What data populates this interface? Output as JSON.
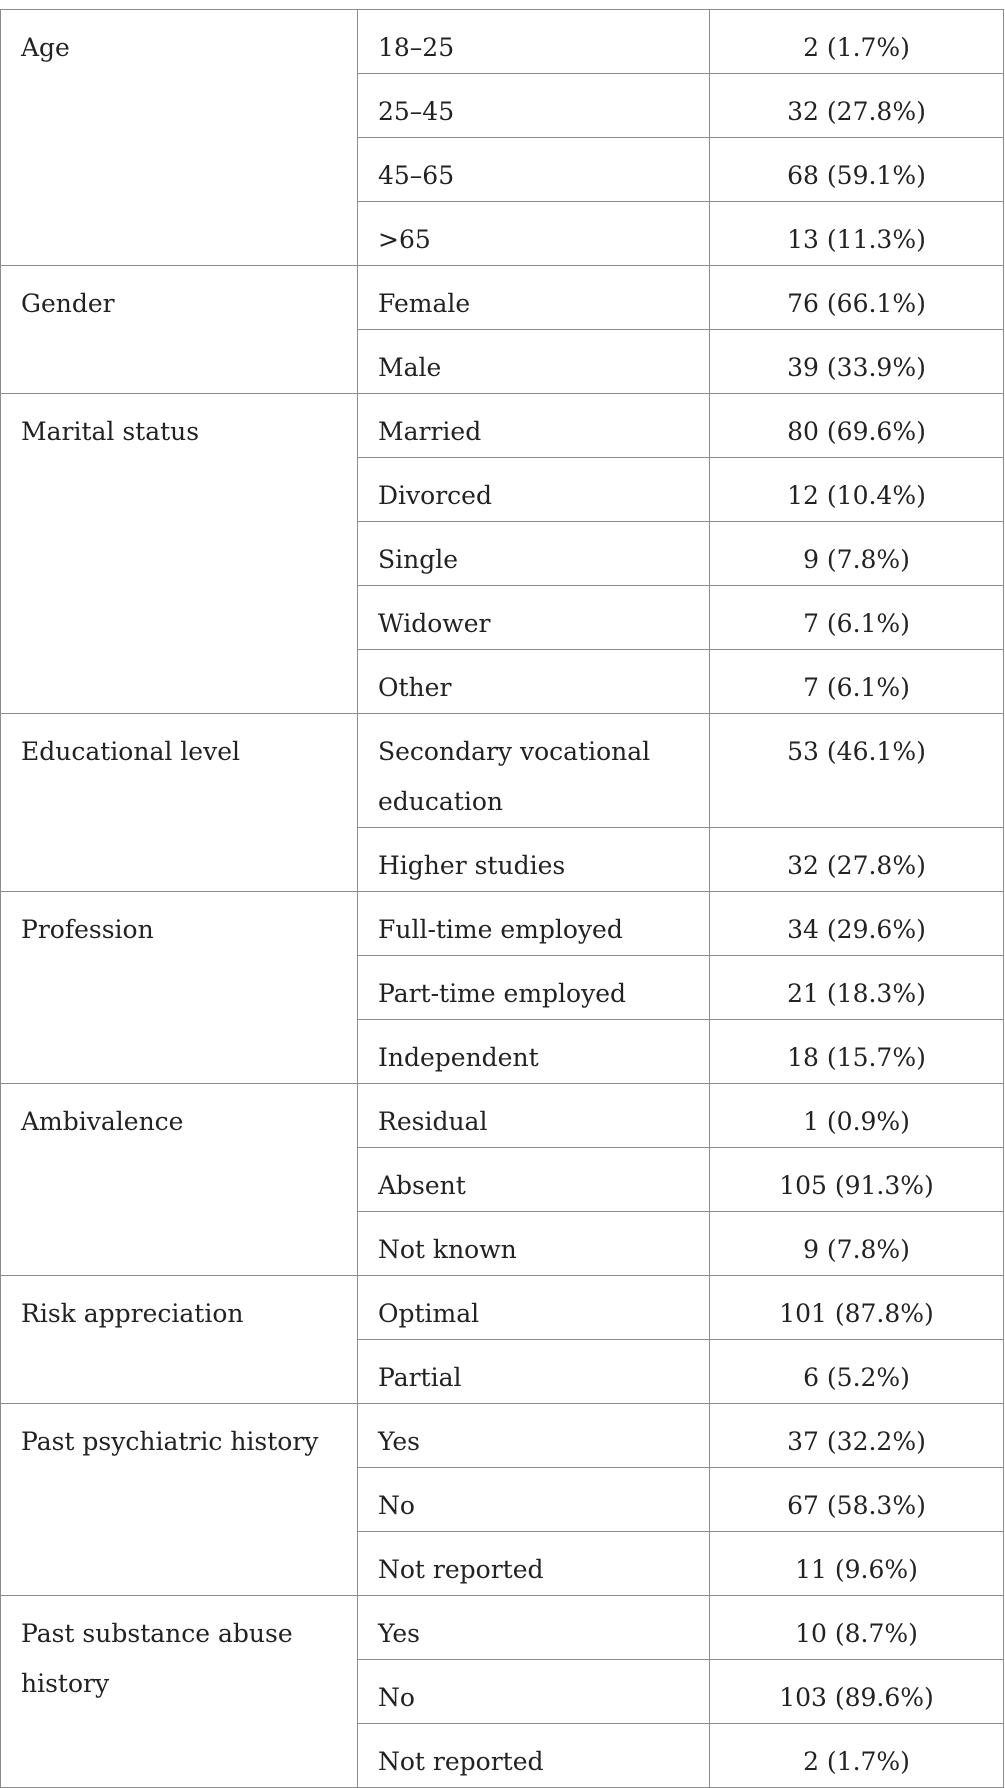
{
  "groups": [
    {
      "variable": "Age",
      "rows": [
        {
          "category": "18–25",
          "value": "2 (1.7%)"
        },
        {
          "category": "25–45",
          "value": "32 (27.8%)"
        },
        {
          "category": "45–65",
          "value": "68 (59.1%)"
        },
        {
          "category": ">65",
          "value": "13 (11.3%)"
        }
      ]
    },
    {
      "variable": "Gender",
      "rows": [
        {
          "category": "Female",
          "value": "76 (66.1%)"
        },
        {
          "category": "Male",
          "value": "39 (33.9%)"
        }
      ]
    },
    {
      "variable": "Marital status",
      "rows": [
        {
          "category": "Married",
          "value": "80 (69.6%)"
        },
        {
          "category": "Divorced",
          "value": "12 (10.4%)"
        },
        {
          "category": "Single",
          "value": "9 (7.8%)"
        },
        {
          "category": "Widower",
          "value": "7 (6.1%)"
        },
        {
          "category": "Other",
          "value": "7 (6.1%)"
        }
      ]
    },
    {
      "variable": "Educational level",
      "rows": [
        {
          "category": "Secondary vocational education",
          "value": "53 (46.1%)",
          "tall": true
        },
        {
          "category": "Higher studies",
          "value": "32 (27.8%)"
        }
      ]
    },
    {
      "variable": "Profession",
      "rows": [
        {
          "category": "Full-time employed",
          "value": "34 (29.6%)"
        },
        {
          "category": "Part-time employed",
          "value": "21 (18.3%)"
        },
        {
          "category": "Independent",
          "value": "18 (15.7%)"
        }
      ]
    },
    {
      "variable": "Ambivalence",
      "rows": [
        {
          "category": "Residual",
          "value": "1 (0.9%)"
        },
        {
          "category": "Absent",
          "value": "105 (91.3%)"
        },
        {
          "category": "Not known",
          "value": "9 (7.8%)"
        }
      ]
    },
    {
      "variable": "Risk appreciation",
      "rows": [
        {
          "category": "Optimal",
          "value": "101 (87.8%)"
        },
        {
          "category": "Partial",
          "value": "6 (5.2%)"
        }
      ]
    },
    {
      "variable": "Past psychiatric history",
      "rows": [
        {
          "category": "Yes",
          "value": "37 (32.2%)"
        },
        {
          "category": "No",
          "value": "67 (58.3%)"
        },
        {
          "category": "Not reported",
          "value": "11 (9.6%)"
        }
      ]
    },
    {
      "variable": "Past substance abuse history",
      "rows": [
        {
          "category": "Yes",
          "value": "10 (8.7%)"
        },
        {
          "category": "No",
          "value": "103 (89.6%)"
        },
        {
          "category": "Not reported",
          "value": "2 (1.7%)"
        }
      ]
    }
  ]
}
